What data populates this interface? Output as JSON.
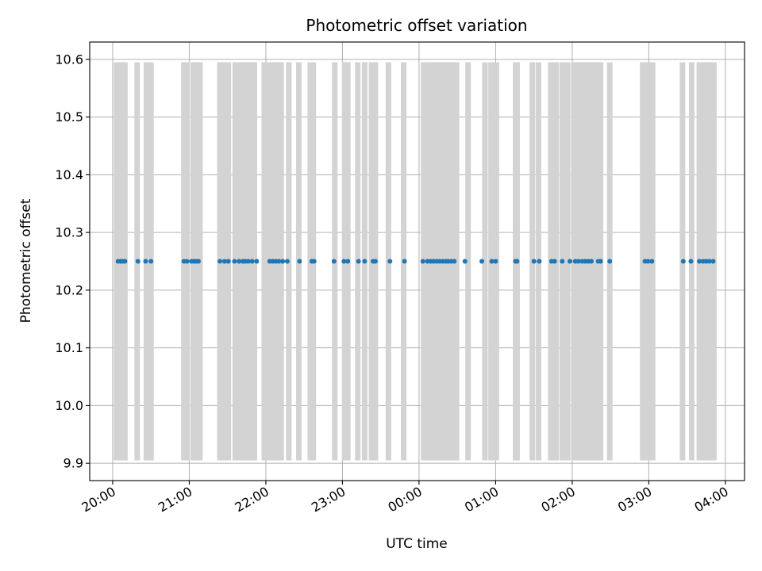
{
  "chart_data": {
    "type": "scatter",
    "title": "Photometric offset variation",
    "xlabel": "UTC time",
    "ylabel": "Photometric offset",
    "x_unit": "hour of night (20 = 20:00, 24 = 00:00 next day)",
    "xlim": [
      19.7,
      28.25
    ],
    "ylim": [
      9.87,
      10.63
    ],
    "grid": true,
    "x_ticks": [
      {
        "value": 20,
        "label": "20:00"
      },
      {
        "value": 21,
        "label": "21:00"
      },
      {
        "value": 22,
        "label": "22:00"
      },
      {
        "value": 23,
        "label": "23:00"
      },
      {
        "value": 24,
        "label": "00:00"
      },
      {
        "value": 25,
        "label": "01:00"
      },
      {
        "value": 26,
        "label": "02:00"
      },
      {
        "value": 27,
        "label": "03:00"
      },
      {
        "value": 28,
        "label": "04:00"
      }
    ],
    "y_ticks": [
      {
        "value": 9.9,
        "label": "9.9"
      },
      {
        "value": 10.0,
        "label": "10.0"
      },
      {
        "value": 10.1,
        "label": "10.1"
      },
      {
        "value": 10.2,
        "label": "10.2"
      },
      {
        "value": 10.3,
        "label": "10.3"
      },
      {
        "value": 10.4,
        "label": "10.4"
      },
      {
        "value": 10.5,
        "label": "10.5"
      },
      {
        "value": 10.6,
        "label": "10.6"
      }
    ],
    "bands": {
      "ymin": 9.905,
      "ymax": 10.595,
      "color": "#d3d3d3",
      "x": [
        20.05,
        20.09,
        20.12,
        20.16,
        20.32,
        20.44,
        20.5,
        20.93,
        20.97,
        21.05,
        21.08,
        21.11,
        21.14,
        21.4,
        21.45,
        21.51,
        21.6,
        21.66,
        21.71,
        21.74,
        21.77,
        21.81,
        21.85,
        21.98,
        22.05,
        22.09,
        22.13,
        22.17,
        22.2,
        22.3,
        22.43,
        22.58,
        22.62,
        22.9,
        23.03,
        23.07,
        23.2,
        23.29,
        23.38,
        23.43,
        23.6,
        23.8,
        24.06,
        24.11,
        24.15,
        24.18,
        24.22,
        24.26,
        24.3,
        24.34,
        24.38,
        24.42,
        24.46,
        24.49,
        24.64,
        24.86,
        24.94,
        24.97,
        25.01,
        25.26,
        25.28,
        25.48,
        25.56,
        25.72,
        25.75,
        25.79,
        25.87,
        25.94,
        26.02,
        26.06,
        26.1,
        26.14,
        26.18,
        26.22,
        26.26,
        26.31,
        26.34,
        26.37,
        26.49,
        26.92,
        26.96,
        27.0,
        27.05,
        27.44,
        27.56,
        27.66,
        27.7,
        27.74,
        27.78,
        27.82,
        27.85
      ]
    },
    "series": [
      {
        "color": "#1f77b4",
        "x": [
          20.07,
          20.1,
          20.13,
          20.16,
          20.33,
          20.43,
          20.5,
          20.93,
          20.97,
          21.03,
          21.06,
          21.09,
          21.12,
          21.4,
          21.46,
          21.51,
          21.59,
          21.65,
          21.7,
          21.73,
          21.77,
          21.82,
          21.88,
          22.05,
          22.09,
          22.13,
          22.17,
          22.22,
          22.28,
          22.44,
          22.6,
          22.63,
          22.89,
          23.02,
          23.07,
          23.21,
          23.29,
          23.4,
          23.43,
          23.62,
          23.81,
          24.05,
          24.11,
          24.15,
          24.19,
          24.23,
          24.27,
          24.31,
          24.35,
          24.38,
          24.42,
          24.46,
          24.6,
          24.82,
          24.95,
          25.0,
          25.26,
          25.28,
          25.5,
          25.57,
          25.73,
          25.77,
          25.87,
          25.97,
          26.04,
          26.08,
          26.13,
          26.17,
          26.21,
          26.25,
          26.34,
          26.37,
          26.49,
          26.95,
          26.99,
          27.04,
          27.45,
          27.55,
          27.66,
          27.71,
          27.75,
          27.79,
          27.84
        ],
        "y": [
          10.25,
          10.25,
          10.25,
          10.25,
          10.25,
          10.25,
          10.25,
          10.25,
          10.25,
          10.25,
          10.25,
          10.25,
          10.25,
          10.25,
          10.25,
          10.25,
          10.25,
          10.25,
          10.25,
          10.25,
          10.25,
          10.25,
          10.25,
          10.25,
          10.25,
          10.25,
          10.25,
          10.25,
          10.25,
          10.25,
          10.25,
          10.25,
          10.25,
          10.25,
          10.25,
          10.25,
          10.25,
          10.25,
          10.25,
          10.25,
          10.25,
          10.25,
          10.25,
          10.25,
          10.25,
          10.25,
          10.25,
          10.25,
          10.25,
          10.25,
          10.25,
          10.25,
          10.25,
          10.25,
          10.25,
          10.25,
          10.25,
          10.25,
          10.25,
          10.25,
          10.25,
          10.25,
          10.25,
          10.25,
          10.25,
          10.25,
          10.25,
          10.25,
          10.25,
          10.25,
          10.25,
          10.25,
          10.25,
          10.25,
          10.25,
          10.25,
          10.25,
          10.25,
          10.25,
          10.25,
          10.25,
          10.25,
          10.25
        ]
      }
    ]
  }
}
